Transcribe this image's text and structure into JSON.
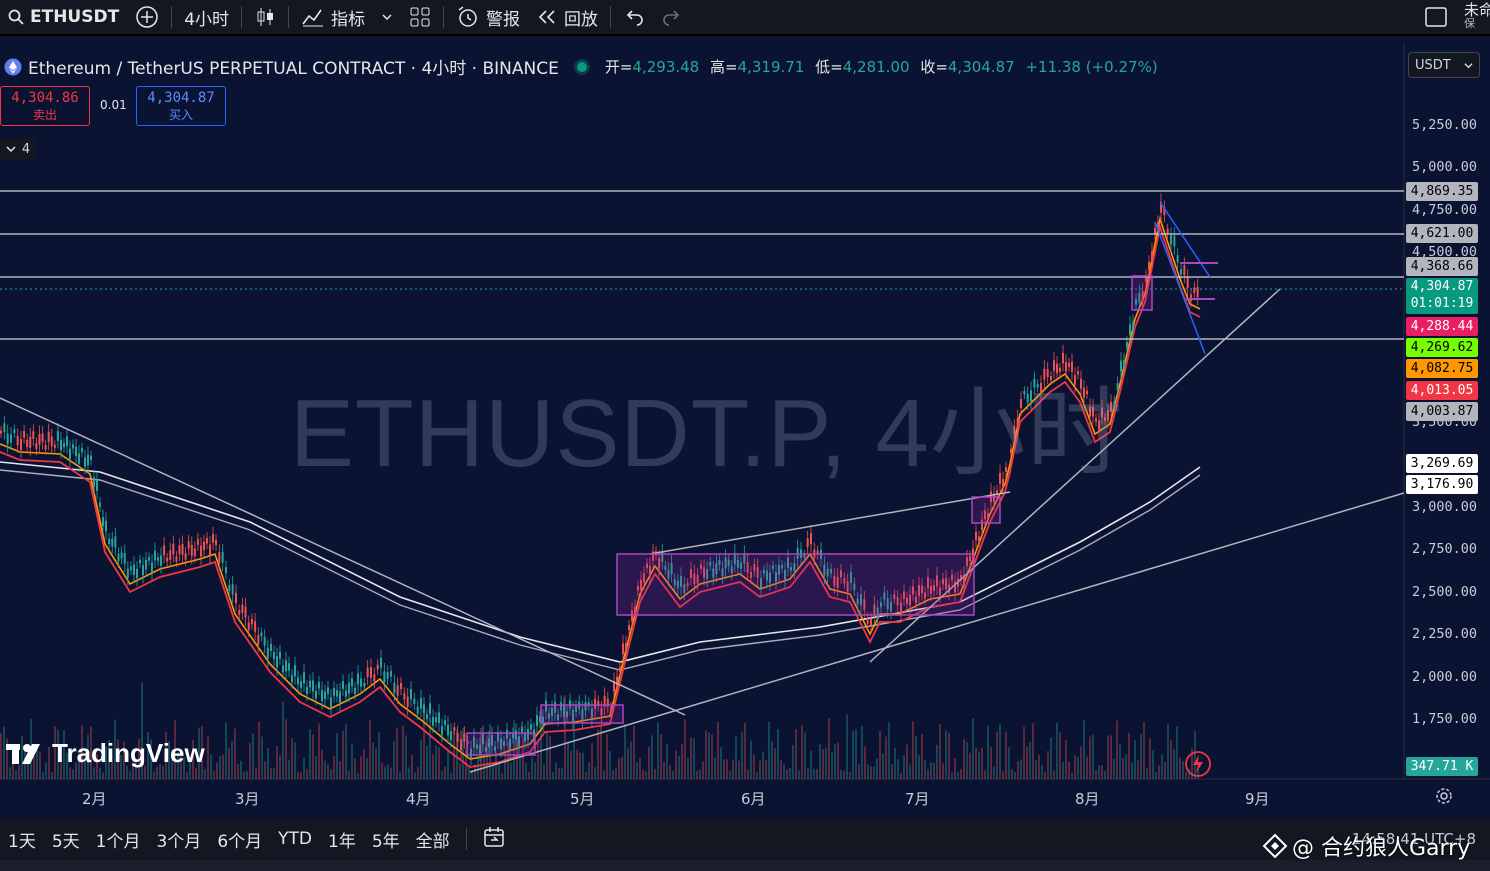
{
  "topbar": {
    "symbol": "ETHUSDT",
    "interval": "4小时",
    "indicators": "指标",
    "alerts": "警报",
    "replay": "回放",
    "account": "未命",
    "account_sub": "保"
  },
  "legend": {
    "title": "Ethereum / TetherUS PERPETUAL CONTRACT · 4小时 · BINANCE",
    "open_label": "开=",
    "open": "4,293.48",
    "high_label": "高=",
    "high": "4,319.71",
    "low_label": "低=",
    "low": "4,281.00",
    "close_label": "收=",
    "close": "4,304.87",
    "change": "+11.38 (+0.27%)",
    "currency": "USDT",
    "indicator_count": "4"
  },
  "trade": {
    "sell_price": "4,304.86",
    "sell_label": "卖出",
    "spread": "0.01",
    "buy_price": "4,304.87",
    "buy_label": "买入"
  },
  "price_axis": {
    "ticks": [
      "5,250.00",
      "5,000.00",
      "4,750.00",
      "4,500.00",
      "3,500.00",
      "3,000.00",
      "2,750.00",
      "2,500.00",
      "2,250.00",
      "2,000.00",
      "1,750.00"
    ],
    "labels": [
      {
        "text": "4,869.35",
        "bg": "#b2b5be",
        "fg": "#000000"
      },
      {
        "text": "4,621.00",
        "bg": "#b2b5be",
        "fg": "#000000"
      },
      {
        "text": "4,368.66",
        "bg": "#b2b5be",
        "fg": "#000000"
      },
      {
        "text": "4,288.44",
        "bg": "#e91e63",
        "fg": "#ffffff"
      },
      {
        "text": "4,269.62",
        "bg": "#76ff03",
        "fg": "#000000"
      },
      {
        "text": "4,082.75",
        "bg": "#ff9800",
        "fg": "#000000"
      },
      {
        "text": "4,013.05",
        "bg": "#f23645",
        "fg": "#ffffff"
      },
      {
        "text": "4,003.87",
        "bg": "#b2b5be",
        "fg": "#000000"
      },
      {
        "text": "3,269.69",
        "bg": "#ffffff",
        "fg": "#000000"
      },
      {
        "text": "3,176.90",
        "bg": "#ffffff",
        "fg": "#000000"
      }
    ],
    "last_price": "4,304.87",
    "countdown": "01:01:19",
    "volume": "347.71 K"
  },
  "time_axis": [
    "2月",
    "3月",
    "4月",
    "5月",
    "6月",
    "7月",
    "8月",
    "9月"
  ],
  "watermark": "ETHUSDT.P, 4小时",
  "brand": "TradingView",
  "ranges": [
    "1天",
    "5天",
    "1个月",
    "3个月",
    "6个月",
    "YTD",
    "1年",
    "5年",
    "全部"
  ],
  "footer_overlay": "@ 合约狼人Garry",
  "footer_time": "14:58:41 UTC+8",
  "colors": {
    "background": "#0b1333",
    "up": "#26a69a",
    "down": "#ef5350",
    "accent": "#2962ff"
  }
}
